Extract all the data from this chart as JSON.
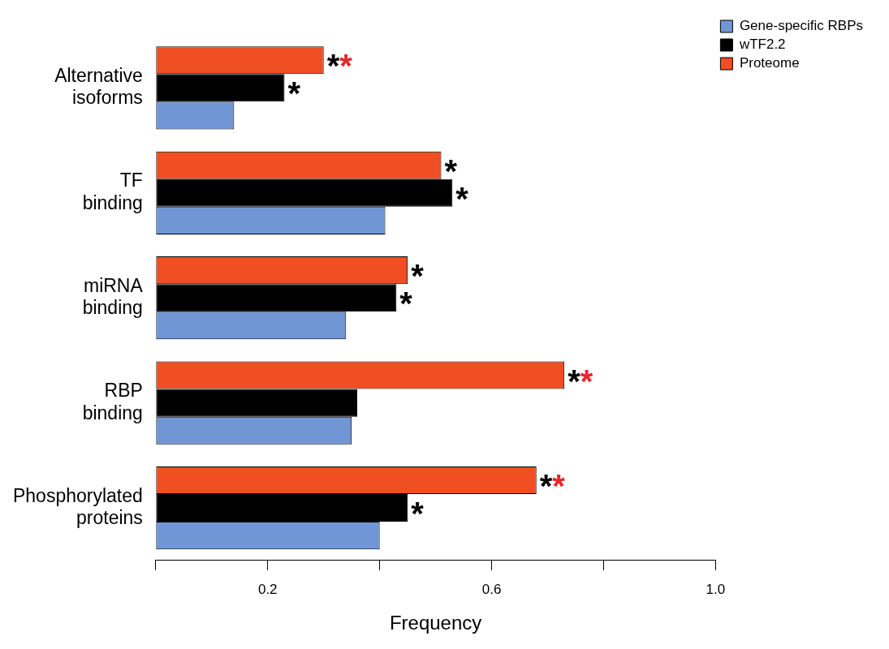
{
  "chart_data": {
    "type": "bar",
    "orientation": "horizontal",
    "xlabel": "Frequency",
    "categories": [
      "Alternative isoforms",
      "TF binding",
      "miRNA binding",
      "RBP binding",
      "Phosphorylated proteins"
    ],
    "series": [
      {
        "name": "Gene-specific RBPs",
        "color": "#7096d6",
        "values": [
          0.14,
          0.41,
          0.34,
          0.35,
          0.4
        ],
        "value_labels": [
          null,
          null,
          null,
          null,
          null
        ]
      },
      {
        "name": "wTF2.2",
        "color": "#000000",
        "values": [
          0.23,
          0.53,
          0.43,
          0.36,
          0.45
        ],
        "value_labels": [
          "*",
          "*",
          "*",
          null,
          "*"
        ]
      },
      {
        "name": "Proteome",
        "color": "#f04e23",
        "values": [
          0.3,
          0.51,
          0.45,
          0.73,
          0.68
        ],
        "value_labels": [
          "**",
          "*",
          "*",
          "**",
          "**"
        ]
      }
    ],
    "xlim": [
      0,
      1
    ],
    "xticks": [
      {
        "value": 0,
        "label": null
      },
      {
        "value": 0.2,
        "label": "0.2"
      },
      {
        "value": 0.4,
        "label": null
      },
      {
        "value": 0.6,
        "label": "0.6"
      },
      {
        "value": 0.8,
        "label": null
      },
      {
        "value": 1,
        "label": "1.0"
      }
    ],
    "legend": "top right"
  }
}
